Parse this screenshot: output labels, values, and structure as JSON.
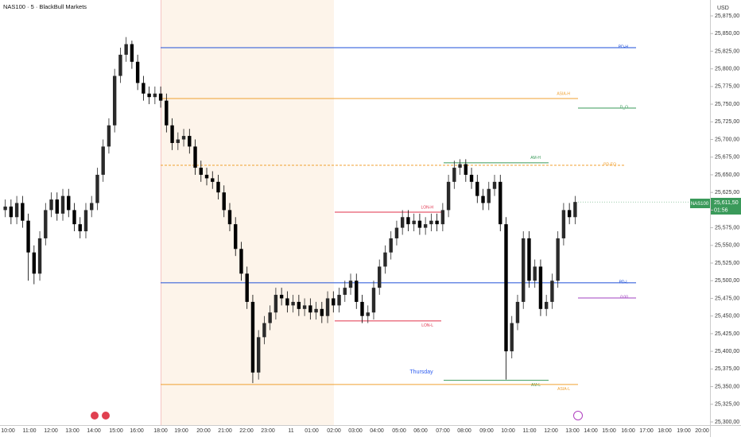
{
  "chart_data": {
    "type": "candlestick",
    "title": "NAS100 · 5 · BlackBull Markets",
    "currency": "USD",
    "up_color": "#2a2a2a",
    "down_color": "#000000",
    "ylim": [
      25295.5,
      25897.5
    ],
    "yticks": [
      {
        "value": 25300,
        "label": "25,300,00"
      },
      {
        "value": 25325,
        "label": "25,325,00"
      },
      {
        "value": 25350,
        "label": "25,350,00"
      },
      {
        "value": 25375,
        "label": "25,375,00"
      },
      {
        "value": 25400,
        "label": "25,400,00"
      },
      {
        "value": 25425,
        "label": "25,425,00"
      },
      {
        "value": 25450,
        "label": "25,450,00"
      },
      {
        "value": 25475,
        "label": "25,475,00"
      },
      {
        "value": 25500,
        "label": "25,500,00"
      },
      {
        "value": 25525,
        "label": "25,525,00"
      },
      {
        "value": 25550,
        "label": "25,550,00"
      },
      {
        "value": 25575,
        "label": "25,575,00"
      },
      {
        "value": 25600,
        "label": "25,600,00"
      },
      {
        "value": 25625,
        "label": "25,625,00"
      },
      {
        "value": 25650,
        "label": "25,650,00"
      },
      {
        "value": 25675,
        "label": "25,675,00"
      },
      {
        "value": 25700,
        "label": "25,700,00"
      },
      {
        "value": 25725,
        "label": "25,725,00"
      },
      {
        "value": 25750,
        "label": "25,750,00"
      },
      {
        "value": 25775,
        "label": "25,775,00"
      },
      {
        "value": 25800,
        "label": "25,800,00"
      },
      {
        "value": 25825,
        "label": "25,825,00"
      },
      {
        "value": 25850,
        "label": "25,850,00"
      },
      {
        "value": 25875,
        "label": "25,875,00"
      }
    ],
    "x_labels": [
      "10:00",
      "11:00",
      "12:00",
      "13:00",
      "14:00",
      "15:00",
      "16:00",
      "18:00",
      "19:00",
      "20:00",
      "21:00",
      "22:00",
      "23:00",
      "11",
      "01:00",
      "02:00",
      "03:00",
      "04:00",
      "05:00",
      "06:00",
      "07:00",
      "08:00",
      "09:00",
      "10:00",
      "11:00",
      "12:00",
      "13:00",
      "14:00",
      "15:00",
      "16:00",
      "17:00",
      "18:00",
      "19:00",
      "20:00"
    ],
    "open": [
      25600,
      25605,
      25590,
      25610,
      25585,
      25540,
      25510,
      25560,
      25600,
      25615,
      25595,
      25620,
      25600,
      25580,
      25570,
      25600,
      25610,
      25650,
      25690,
      25720,
      25790,
      25820,
      25835,
      25810,
      25780,
      25765,
      25760,
      25765,
      25755,
      25720,
      25695,
      25700,
      25705,
      25690,
      25660,
      25650,
      25645,
      25640,
      25625,
      25600,
      25580,
      25545,
      25510,
      25470,
      25370,
      25420,
      25440,
      25455,
      25480,
      25475,
      25465,
      25470,
      25460,
      25465,
      25455,
      25460,
      25450,
      25475,
      25465,
      25480,
      25490,
      25500,
      25470,
      25450,
      25455,
      25490,
      25520,
      25540,
      25560,
      25575,
      25590,
      25580,
      25585,
      25575,
      25580,
      25585,
      25580,
      25600,
      25640,
      25660,
      25665,
      25650,
      25640,
      25620,
      25610,
      25630,
      25640,
      25580,
      25400,
      25440,
      25470,
      25560,
      25500,
      25520,
      25460,
      25470,
      25500,
      25560,
      25600,
      25590
    ],
    "high": [
      25615,
      25615,
      25620,
      25620,
      25595,
      25550,
      25570,
      25610,
      25625,
      25625,
      25630,
      25630,
      25610,
      25590,
      25610,
      25620,
      25660,
      25700,
      25730,
      25800,
      25830,
      25845,
      25840,
      25820,
      25790,
      25775,
      25775,
      25775,
      25765,
      25730,
      25710,
      25715,
      25715,
      25700,
      25670,
      25660,
      25655,
      25650,
      25635,
      25610,
      25590,
      25555,
      25520,
      25480,
      25430,
      25450,
      25465,
      25490,
      25490,
      25485,
      25480,
      25480,
      25475,
      25475,
      25470,
      25470,
      25485,
      25485,
      25490,
      25500,
      25510,
      25510,
      25480,
      25465,
      25500,
      25530,
      25550,
      25570,
      25585,
      25600,
      25600,
      25595,
      25595,
      25590,
      25595,
      25595,
      25610,
      25650,
      25670,
      25672,
      25672,
      25660,
      25650,
      25630,
      25640,
      25650,
      25650,
      25590,
      25450,
      25480,
      25570,
      25570,
      25530,
      25530,
      25480,
      25510,
      25570,
      25610,
      25610,
      25620
    ],
    "low": [
      25590,
      25580,
      25580,
      25575,
      25500,
      25495,
      25500,
      25550,
      25590,
      25585,
      25585,
      25590,
      25570,
      25560,
      25560,
      25590,
      25600,
      25640,
      25680,
      25710,
      25780,
      25810,
      25800,
      25770,
      25755,
      25750,
      25750,
      25745,
      25710,
      25685,
      25685,
      25690,
      25680,
      25650,
      25640,
      25635,
      25630,
      25615,
      25590,
      25570,
      25535,
      25500,
      25460,
      25355,
      25360,
      25410,
      25430,
      25445,
      25465,
      25455,
      25455,
      25450,
      25450,
      25445,
      25445,
      25440,
      25440,
      25455,
      25455,
      25470,
      25480,
      25460,
      25440,
      25440,
      25445,
      25480,
      25510,
      25530,
      25550,
      25565,
      25570,
      25570,
      25565,
      25565,
      25570,
      25570,
      25570,
      25590,
      25630,
      25650,
      25640,
      25630,
      25610,
      25600,
      25600,
      25620,
      25570,
      25360,
      25390,
      25430,
      25460,
      25490,
      25490,
      25450,
      25450,
      25460,
      25490,
      25550,
      25580,
      25580
    ],
    "close": [
      25605,
      25590,
      25610,
      25585,
      25540,
      25510,
      25560,
      25600,
      25615,
      25595,
      25620,
      25600,
      25580,
      25570,
      25600,
      25610,
      25650,
      25690,
      25720,
      25790,
      25820,
      25835,
      25810,
      25780,
      25765,
      25760,
      25765,
      25755,
      25720,
      25695,
      25700,
      25705,
      25690,
      25660,
      25650,
      25645,
      25640,
      25625,
      25600,
      25580,
      25545,
      25510,
      25470,
      25370,
      25420,
      25440,
      25455,
      25480,
      25475,
      25465,
      25470,
      25460,
      25465,
      25455,
      25460,
      25450,
      25475,
      25465,
      25480,
      25490,
      25500,
      25470,
      25450,
      25455,
      25490,
      25520,
      25540,
      25560,
      25575,
      25590,
      25580,
      25585,
      25575,
      25580,
      25585,
      25580,
      25600,
      25640,
      25660,
      25665,
      25650,
      25640,
      25620,
      25610,
      25630,
      25640,
      25580,
      25400,
      25440,
      25470,
      25560,
      25500,
      25520,
      25460,
      25470,
      25500,
      25560,
      25600,
      25590,
      25611.5
    ],
    "levels": [
      {
        "name": "PD-H",
        "value": 25830,
        "color": "#1e4fd8"
      },
      {
        "name": "ASIA-H",
        "value": 25758,
        "color": "#f0a030"
      },
      {
        "name": "D_O",
        "value": 25744.5,
        "color": "#3a9a5a"
      },
      {
        "name": "PD-EQ",
        "value": 25663.5,
        "color": "#f0a030",
        "dashed": true
      },
      {
        "name": "AM-H",
        "value": 25667,
        "color": "#3a9a5a"
      },
      {
        "name": "LON-H",
        "value": 25597,
        "color": "#e0304a"
      },
      {
        "name": "PD-L",
        "value": 25497,
        "color": "#1e4fd8"
      },
      {
        "name": "0:00",
        "value": 25475.5,
        "color": "#a040c0"
      },
      {
        "name": "LON-L",
        "value": 25443,
        "color": "#e0304a"
      },
      {
        "name": "AM-L",
        "value": 25359,
        "color": "#3a9a5a"
      },
      {
        "name": "ASIA-L",
        "value": 25353,
        "color": "#f0a030"
      }
    ],
    "annotation": "Thursday",
    "symbol": "NAS100",
    "last_price": {
      "value": 25611.5,
      "label": "25,611,50"
    },
    "countdown": "01:56"
  }
}
